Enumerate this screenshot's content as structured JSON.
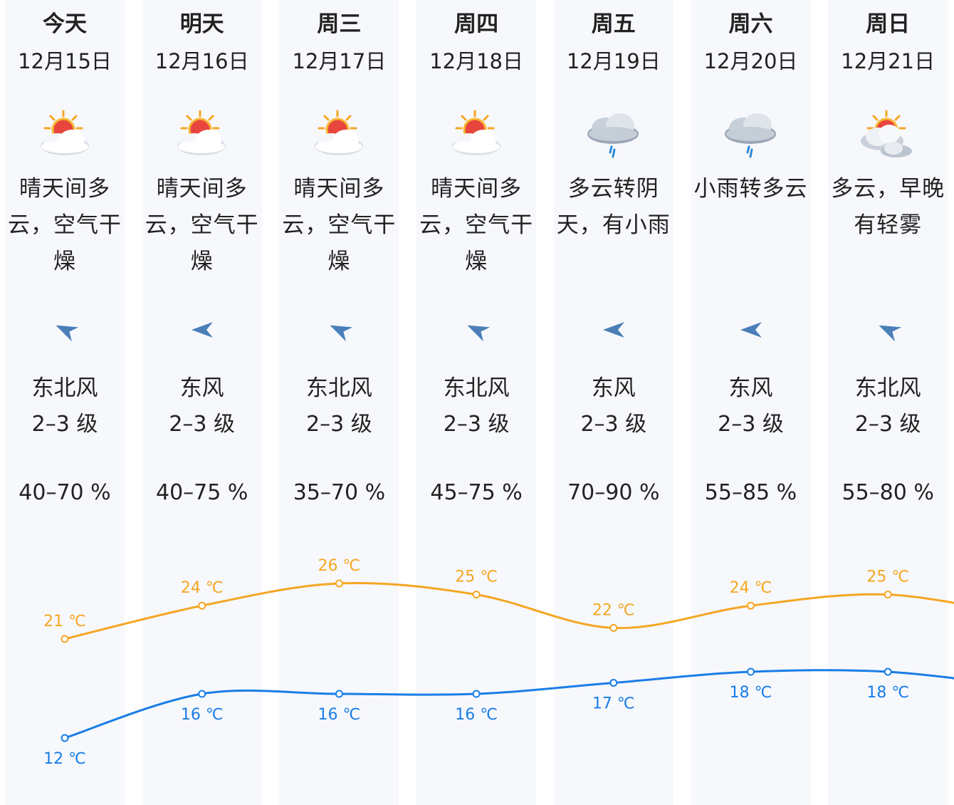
{
  "days": [
    {
      "day": "今天",
      "date": "12月15日",
      "icon": "sun-behind-cloud-icon",
      "desc": "晴天间多云，空气干燥",
      "wind_icon": "wind-northeast-arrow-icon",
      "wind_dir": "东北风",
      "wind_level": "2–3 级",
      "humidity": "40–70 %"
    },
    {
      "day": "明天",
      "date": "12月16日",
      "icon": "sun-behind-cloud-icon",
      "desc": "晴天间多云，空气干燥",
      "wind_icon": "wind-east-arrow-icon",
      "wind_dir": "东风",
      "wind_level": "2–3 级",
      "humidity": "40–75 %"
    },
    {
      "day": "周三",
      "date": "12月17日",
      "icon": "sun-behind-cloud-icon",
      "desc": "晴天间多云，空气干燥",
      "wind_icon": "wind-northeast-arrow-icon",
      "wind_dir": "东北风",
      "wind_level": "2–3 级",
      "humidity": "35–70 %"
    },
    {
      "day": "周四",
      "date": "12月18日",
      "icon": "sun-behind-cloud-icon",
      "desc": "晴天间多云，空气干燥",
      "wind_icon": "wind-northeast-arrow-icon",
      "wind_dir": "东北风",
      "wind_level": "2–3 级",
      "humidity": "45–75 %"
    },
    {
      "day": "周五",
      "date": "12月19日",
      "icon": "rain-cloud-icon",
      "desc": "多云转阴天，有小雨",
      "wind_icon": "wind-east-arrow-icon",
      "wind_dir": "东风",
      "wind_level": "2–3 级",
      "humidity": "70–90 %"
    },
    {
      "day": "周六",
      "date": "12月20日",
      "icon": "rain-cloud-icon",
      "desc": "小雨转多云",
      "wind_icon": "wind-east-arrow-icon",
      "wind_dir": "东风",
      "wind_level": "2–3 级",
      "humidity": "55–85 %"
    },
    {
      "day": "周日",
      "date": "12月21日",
      "icon": "partly-cloudy-icon",
      "desc": "多云，早晚有轻雾",
      "wind_icon": "wind-northeast-arrow-icon",
      "wind_dir": "东北风",
      "wind_level": "2–3 级",
      "humidity": "55–80 %"
    }
  ],
  "colors": {
    "high": "#f5a623",
    "low": "#1a7de6",
    "column_bg": "#f6f8fc",
    "wind_arrow": "#4a7fb8"
  },
  "chart_data": {
    "type": "line",
    "categories": [
      "12月15日",
      "12月16日",
      "12月17日",
      "12月18日",
      "12月19日",
      "12月20日",
      "12月21日"
    ],
    "unit": "℃",
    "series": [
      {
        "name": "",
        "key": "high",
        "values": [
          21,
          24,
          26,
          25,
          22,
          24,
          25
        ]
      },
      {
        "name": "",
        "key": "low",
        "values": [
          12,
          16,
          16,
          16,
          17,
          18,
          18
        ]
      }
    ],
    "labels_high": [
      "21 ℃",
      "24 ℃",
      "26 ℃",
      "25 ℃",
      "22 ℃",
      "24 ℃",
      "25 ℃"
    ],
    "labels_low": [
      "12 ℃",
      "16 ℃",
      "16 ℃",
      "16 ℃",
      "17 ℃",
      "18 ℃",
      "18 ℃"
    ]
  }
}
